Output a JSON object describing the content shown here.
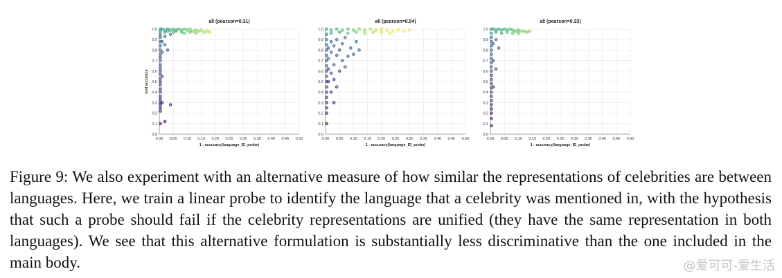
{
  "figure": {
    "caption": "Figure 9: We also experiment with an alternative measure of how similar the representations of celebrities are between languages. Here, we train a linear probe to identify the language that a celebrity was mentioned in, with the hypothesis that such a probe should fail if the celebrity representations are unified (they have the same representation in both languages). We see that this alternative formulation is substantially less discriminative than the one included in the main body.",
    "watermark": "@爱可可-爱生活"
  },
  "chart_data": [
    {
      "type": "scatter",
      "title": "all (pearson=0.31)",
      "xlabel": "1 - accuracy(language_ID_probe)",
      "ylabel": "ood accuracy",
      "xlim": [
        0,
        0.5
      ],
      "ylim": [
        0,
        1.0
      ],
      "xticks": [
        "0.00",
        "0.05",
        "0.10",
        "0.15",
        "0.20",
        "0.25",
        "0.30",
        "0.35",
        "0.40",
        "0.45",
        "0.50"
      ],
      "yticks": [
        "0.0",
        "0.1",
        "0.2",
        "0.3",
        "0.4",
        "0.5",
        "0.6",
        "0.7",
        "0.8",
        "0.9",
        "1.0"
      ],
      "grid": true,
      "points": [
        [
          0,
          0.1
        ],
        [
          0,
          0.22
        ],
        [
          0,
          0.25
        ],
        [
          0,
          0.28
        ],
        [
          0,
          0.3
        ],
        [
          0,
          0.33
        ],
        [
          0,
          0.36
        ],
        [
          0,
          0.4
        ],
        [
          0,
          0.43
        ],
        [
          0,
          0.47
        ],
        [
          0,
          0.5
        ],
        [
          0,
          0.53
        ],
        [
          0,
          0.57
        ],
        [
          0,
          0.6
        ],
        [
          0,
          0.63
        ],
        [
          0,
          0.66
        ],
        [
          0,
          0.7
        ],
        [
          0,
          0.73
        ],
        [
          0,
          0.76
        ],
        [
          0,
          0.8
        ],
        [
          0,
          0.84
        ],
        [
          0,
          0.88
        ],
        [
          0,
          0.92
        ],
        [
          0,
          0.95
        ],
        [
          0,
          0.98
        ],
        [
          0.01,
          0.3
        ],
        [
          0.01,
          0.55
        ],
        [
          0.01,
          0.78
        ],
        [
          0.01,
          0.88
        ],
        [
          0.02,
          0.85
        ],
        [
          0.02,
          0.93
        ],
        [
          0.02,
          0.12
        ],
        [
          0.03,
          0.8
        ],
        [
          0.04,
          0.28
        ],
        [
          0.04,
          0.95
        ],
        [
          0.0,
          1.0
        ],
        [
          0.01,
          1.0
        ],
        [
          0.02,
          0.99
        ],
        [
          0.03,
          1.0
        ],
        [
          0.04,
          0.99
        ],
        [
          0.05,
          1.0
        ],
        [
          0.06,
          0.99
        ],
        [
          0.07,
          1.0
        ],
        [
          0.08,
          0.99
        ],
        [
          0.09,
          1.0
        ],
        [
          0.1,
          0.99
        ],
        [
          0.11,
          1.0
        ],
        [
          0.12,
          0.98
        ],
        [
          0.13,
          0.99
        ],
        [
          0.14,
          0.98
        ],
        [
          0.15,
          0.99
        ],
        [
          0.16,
          0.97
        ],
        [
          0.17,
          0.98
        ],
        [
          0.18,
          0.97
        ],
        [
          0.02,
          0.97
        ],
        [
          0.03,
          0.98
        ],
        [
          0.05,
          0.97
        ],
        [
          0.06,
          0.98
        ],
        [
          0.08,
          0.97
        ],
        [
          0.09,
          0.96
        ],
        [
          0.11,
          0.97
        ],
        [
          0.13,
          0.96
        ]
      ]
    },
    {
      "type": "scatter",
      "title": "all (pearson=0.54)",
      "xlabel": "1 - accuracy(language_ID_probe)",
      "ylabel": "",
      "xlim": [
        0,
        0.5
      ],
      "ylim": [
        0,
        1.0
      ],
      "xticks": [
        "0.00",
        "0.05",
        "0.10",
        "0.15",
        "0.20",
        "0.25",
        "0.30",
        "0.35",
        "0.40",
        "0.45",
        "0.50"
      ],
      "yticks": [
        "0.0",
        "0.1",
        "0.2",
        "0.3",
        "0.4",
        "0.5",
        "0.6",
        "0.7",
        "0.8",
        "0.9",
        "1.0"
      ],
      "grid": true,
      "points": [
        [
          0,
          0.1
        ],
        [
          0,
          0.2
        ],
        [
          0,
          0.25
        ],
        [
          0,
          0.3
        ],
        [
          0,
          0.35
        ],
        [
          0,
          0.4
        ],
        [
          0,
          0.45
        ],
        [
          0,
          0.5
        ],
        [
          0,
          0.55
        ],
        [
          0,
          0.6
        ],
        [
          0,
          0.65
        ],
        [
          0,
          0.7
        ],
        [
          0,
          0.75
        ],
        [
          0,
          0.8
        ],
        [
          0,
          0.85
        ],
        [
          0,
          0.9
        ],
        [
          0,
          0.95
        ],
        [
          0.01,
          0.5
        ],
        [
          0.01,
          0.62
        ],
        [
          0.01,
          0.72
        ],
        [
          0.01,
          0.82
        ],
        [
          0.02,
          0.4
        ],
        [
          0.02,
          0.58
        ],
        [
          0.02,
          0.78
        ],
        [
          0.02,
          0.88
        ],
        [
          0.03,
          0.3
        ],
        [
          0.03,
          0.52
        ],
        [
          0.03,
          0.66
        ],
        [
          0.03,
          0.84
        ],
        [
          0.04,
          0.45
        ],
        [
          0.04,
          0.75
        ],
        [
          0.04,
          0.9
        ],
        [
          0.05,
          0.6
        ],
        [
          0.05,
          0.8
        ],
        [
          0.06,
          0.7
        ],
        [
          0.06,
          0.86
        ],
        [
          0.07,
          0.64
        ],
        [
          0.07,
          0.92
        ],
        [
          0.08,
          0.74
        ],
        [
          0.09,
          0.82
        ],
        [
          0.1,
          0.76
        ],
        [
          0.11,
          0.88
        ],
        [
          0.12,
          0.8
        ],
        [
          0.0,
          1.0
        ],
        [
          0.02,
          0.99
        ],
        [
          0.04,
          1.0
        ],
        [
          0.06,
          0.99
        ],
        [
          0.08,
          1.0
        ],
        [
          0.1,
          0.99
        ],
        [
          0.12,
          1.0
        ],
        [
          0.14,
          0.99
        ],
        [
          0.16,
          1.0
        ],
        [
          0.18,
          0.99
        ],
        [
          0.2,
          1.0
        ],
        [
          0.22,
          0.99
        ],
        [
          0.24,
          0.98
        ],
        [
          0.26,
          0.99
        ],
        [
          0.28,
          0.98
        ],
        [
          0.3,
          0.99
        ],
        [
          0.02,
          0.96
        ],
        [
          0.05,
          0.97
        ],
        [
          0.08,
          0.96
        ],
        [
          0.11,
          0.97
        ],
        [
          0.14,
          0.96
        ],
        [
          0.17,
          0.97
        ],
        [
          0.2,
          0.97
        ],
        [
          0.23,
          0.96
        ]
      ]
    },
    {
      "type": "scatter",
      "title": "all (pearson=0.33)",
      "xlabel": "1 - accuracy(language_ID_probe)",
      "ylabel": "",
      "xlim": [
        0,
        0.5
      ],
      "ylim": [
        0,
        1.0
      ],
      "xticks": [
        "0.00",
        "0.05",
        "0.10",
        "0.15",
        "0.20",
        "0.25",
        "0.30",
        "0.35",
        "0.40",
        "0.45",
        "0.50"
      ],
      "yticks": [
        "0.0",
        "0.1",
        "0.2",
        "0.3",
        "0.4",
        "0.5",
        "0.6",
        "0.7",
        "0.8",
        "0.9",
        "1.0"
      ],
      "grid": true,
      "points": [
        [
          0,
          0.08
        ],
        [
          0,
          0.15
        ],
        [
          0,
          0.2
        ],
        [
          0,
          0.24
        ],
        [
          0,
          0.28
        ],
        [
          0,
          0.32
        ],
        [
          0,
          0.36
        ],
        [
          0,
          0.4
        ],
        [
          0,
          0.44
        ],
        [
          0,
          0.48
        ],
        [
          0,
          0.52
        ],
        [
          0,
          0.56
        ],
        [
          0,
          0.6
        ],
        [
          0,
          0.64
        ],
        [
          0,
          0.68
        ],
        [
          0,
          0.72
        ],
        [
          0,
          0.76
        ],
        [
          0,
          0.8
        ],
        [
          0,
          0.84
        ],
        [
          0,
          0.88
        ],
        [
          0,
          0.92
        ],
        [
          0,
          0.96
        ],
        [
          0.01,
          0.45
        ],
        [
          0.01,
          0.7
        ],
        [
          0.01,
          0.86
        ],
        [
          0.02,
          0.9
        ],
        [
          0.02,
          0.62
        ],
        [
          0.03,
          0.82
        ],
        [
          0.0,
          1.0
        ],
        [
          0.01,
          1.0
        ],
        [
          0.02,
          0.99
        ],
        [
          0.03,
          1.0
        ],
        [
          0.04,
          0.99
        ],
        [
          0.05,
          1.0
        ],
        [
          0.06,
          0.99
        ],
        [
          0.07,
          1.0
        ],
        [
          0.08,
          0.99
        ],
        [
          0.09,
          0.98
        ],
        [
          0.1,
          0.99
        ],
        [
          0.11,
          0.98
        ],
        [
          0.12,
          0.98
        ],
        [
          0.13,
          0.97
        ],
        [
          0.14,
          0.98
        ],
        [
          0.02,
          0.97
        ],
        [
          0.04,
          0.96
        ],
        [
          0.06,
          0.97
        ],
        [
          0.08,
          0.96
        ],
        [
          0.1,
          0.96
        ]
      ]
    }
  ]
}
